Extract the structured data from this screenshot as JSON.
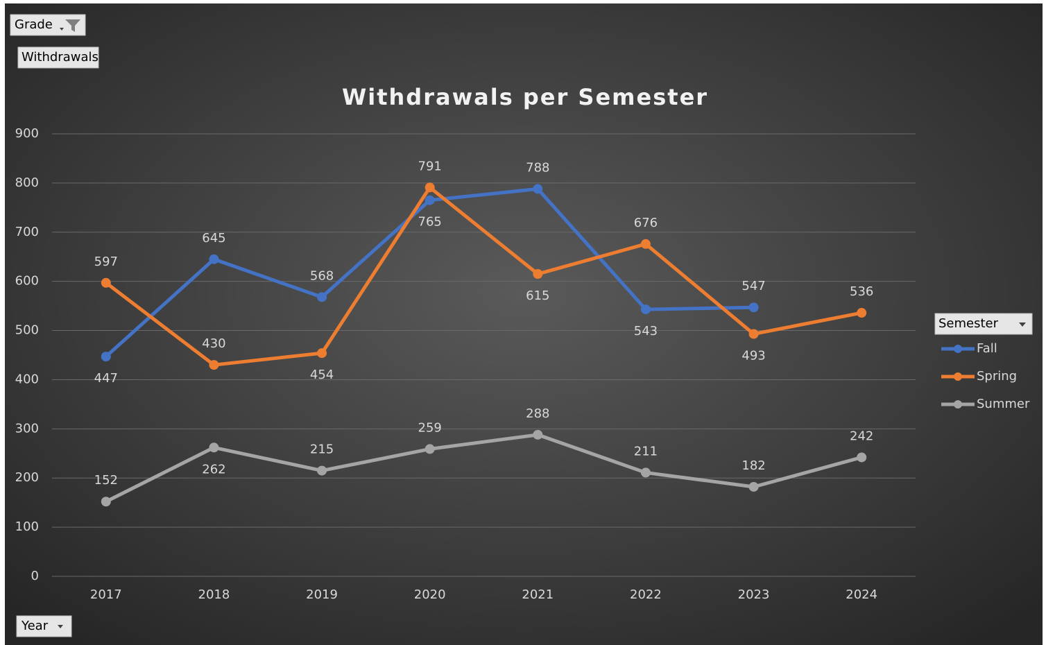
{
  "chart_data": {
    "type": "line",
    "title": "Withdrawals per Semester",
    "field_buttons": {
      "filter": "Grade",
      "value": "Withdrawals",
      "axis": "Year",
      "legend": "Semester"
    },
    "categories": [
      "2017",
      "2018",
      "2019",
      "2020",
      "2021",
      "2022",
      "2023",
      "2024"
    ],
    "series": [
      {
        "name": "Fall",
        "color": "#4472c4",
        "values": [
          447,
          645,
          568,
          765,
          788,
          543,
          547,
          null
        ]
      },
      {
        "name": "Spring",
        "color": "#ed7d31",
        "values": [
          597,
          430,
          454,
          791,
          615,
          676,
          493,
          536
        ]
      },
      {
        "name": "Summer",
        "color": "#a5a5a5",
        "values": [
          152,
          262,
          215,
          259,
          288,
          211,
          182,
          242
        ]
      }
    ],
    "ylim": [
      0,
      900
    ],
    "yticks": [
      0,
      100,
      200,
      300,
      400,
      500,
      600,
      700,
      800,
      900
    ],
    "grid": true,
    "legend": "right"
  }
}
